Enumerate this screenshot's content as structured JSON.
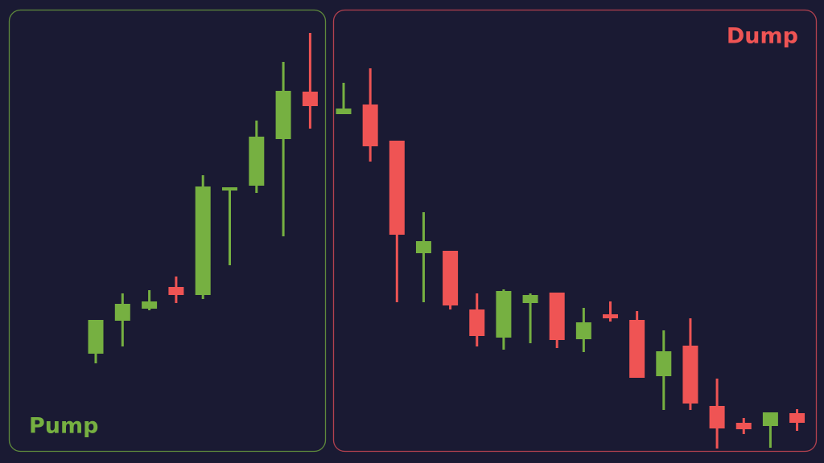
{
  "chart_data": [
    {
      "type": "candlestick",
      "title": "Pump",
      "up_color": "#76b041",
      "down_color": "#ef5454",
      "border_color": "#5f8a3c",
      "ylim": [
        0,
        576
      ],
      "open": [
        136,
        177,
        192,
        219,
        209,
        339,
        345,
        403,
        462
      ],
      "high": [
        178,
        211,
        215,
        232,
        358,
        343,
        426,
        499,
        535
      ],
      "low": [
        124,
        145,
        190,
        199,
        204,
        246,
        336,
        282,
        416
      ],
      "close": [
        178,
        198,
        201,
        209,
        344,
        343,
        406,
        463,
        444
      ]
    },
    {
      "type": "candlestick",
      "title": "Dump",
      "up_color": "#76b041",
      "down_color": "#ef5454",
      "border_color": "#b2414f",
      "ylim": [
        0,
        576
      ],
      "open": [
        434,
        446,
        401,
        261,
        264,
        191,
        156,
        199,
        212,
        154,
        185,
        178,
        108,
        146,
        71,
        50,
        46,
        62
      ],
      "high": [
        473,
        491,
        401,
        312,
        264,
        211,
        216,
        211,
        212,
        193,
        201,
        189,
        165,
        180,
        105,
        56,
        63,
        67
      ],
      "low": [
        434,
        375,
        200,
        200,
        191,
        145,
        141,
        149,
        143,
        138,
        176,
        106,
        66,
        66,
        18,
        36,
        19,
        40
      ],
      "close": [
        441,
        394,
        284,
        276,
        196,
        158,
        214,
        209,
        153,
        175,
        180,
        106,
        139,
        74,
        43,
        42,
        63,
        50
      ]
    }
  ]
}
